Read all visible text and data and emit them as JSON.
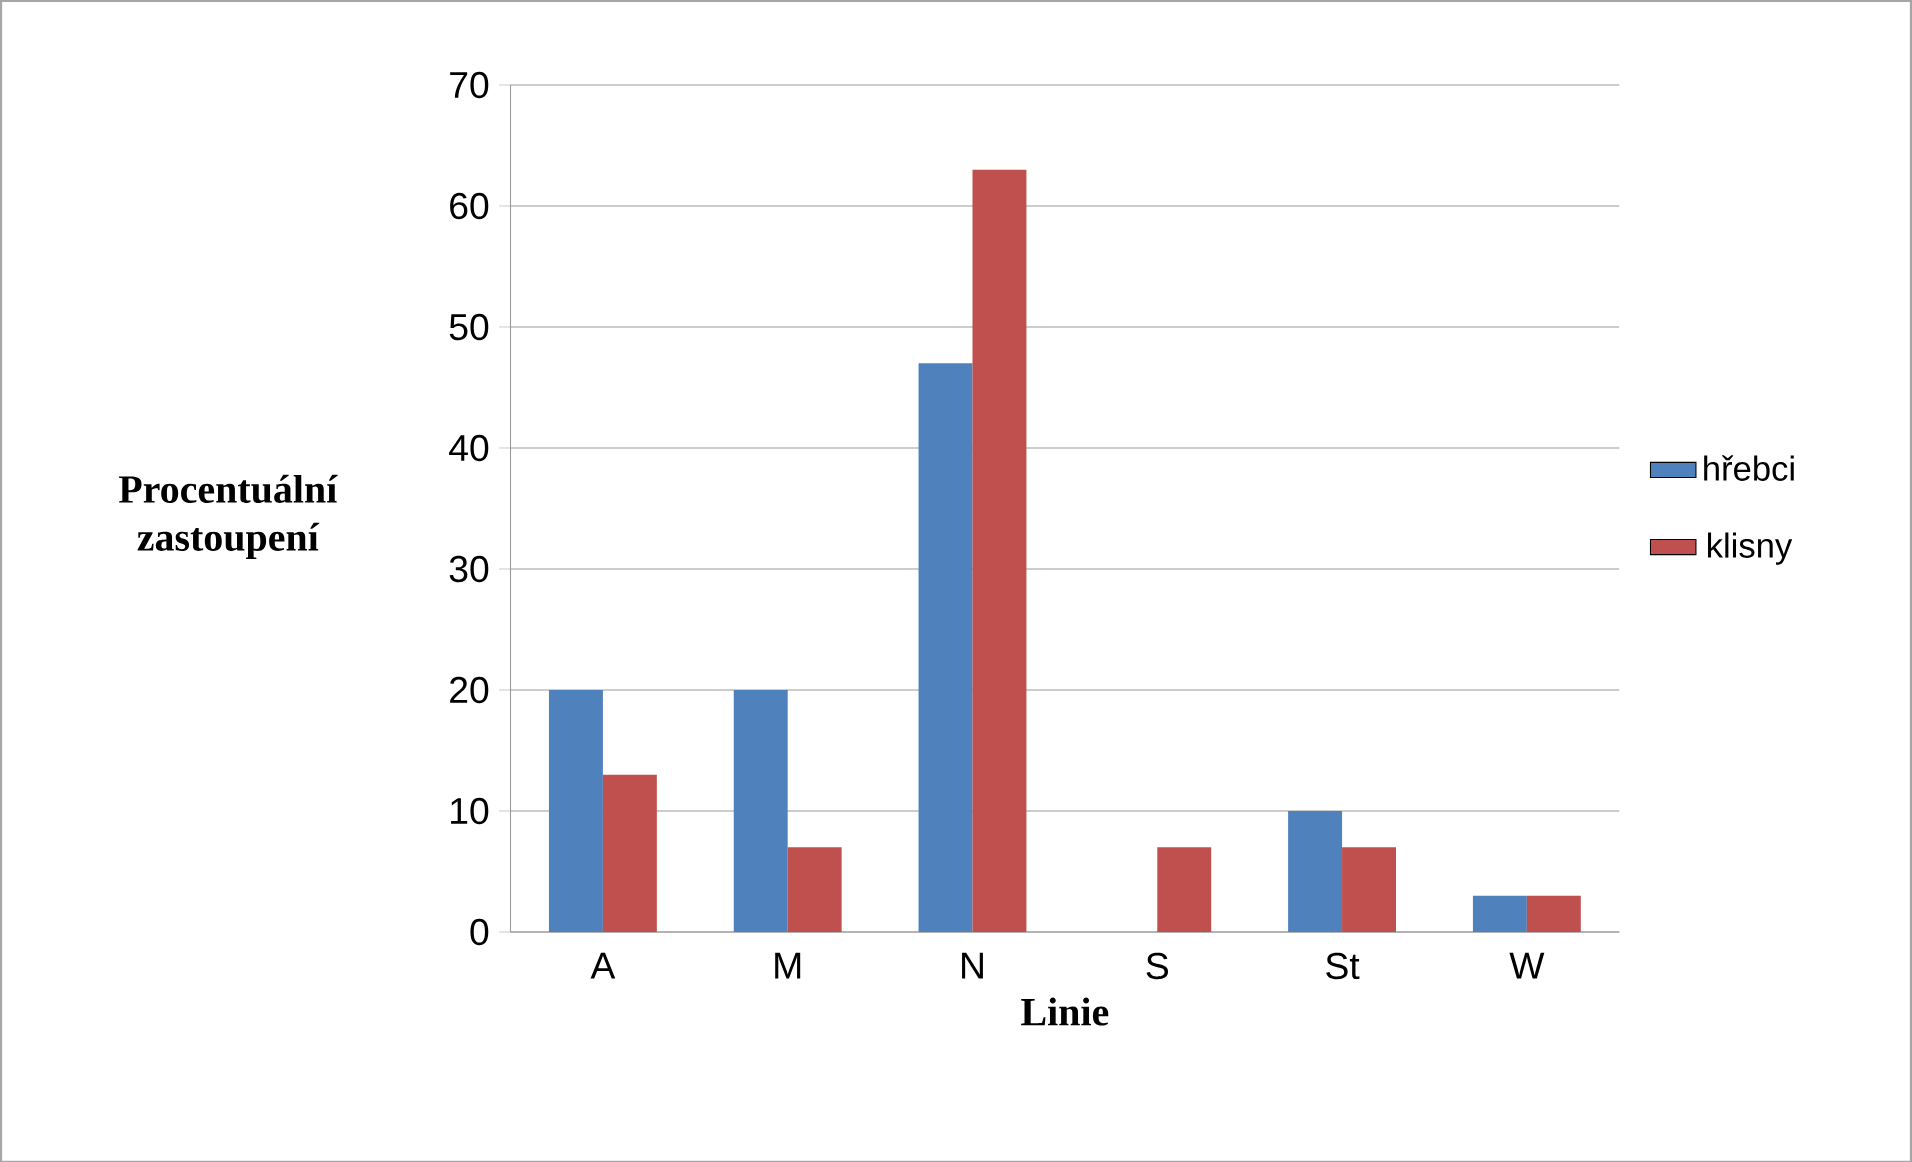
{
  "chart_data": {
    "type": "bar",
    "xlabel": "Linie",
    "ylabel": "Procentuální zastoupení",
    "categories": [
      "A",
      "M",
      "N",
      "S",
      "St",
      "W"
    ],
    "series": [
      {
        "name": "hřebci",
        "color": "#4f81bd",
        "values": [
          20,
          20,
          47,
          0,
          10,
          3
        ]
      },
      {
        "name": "klisny",
        "color": "#c0504d",
        "values": [
          13,
          7,
          63,
          7,
          7,
          3
        ]
      }
    ],
    "ylim": [
      0,
      70
    ],
    "yticks": [
      0,
      10,
      20,
      30,
      40,
      50,
      60,
      70
    ],
    "grid": "y",
    "legend": "right"
  }
}
